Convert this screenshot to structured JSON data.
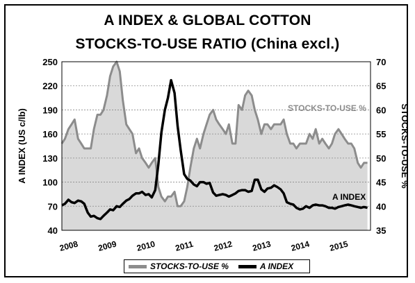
{
  "title_line1": "A INDEX & GLOBAL COTTON",
  "title_line2": "STOCKS-TO-USE RATIO (China excl.)",
  "colors": {
    "stocks_line": "#8c8c8c",
    "stocks_fill": "#d9d9d9",
    "a_index": "#000000",
    "plot_bg": "#ffffff"
  },
  "chart_data": {
    "type": "area",
    "ylabel": "A INDEX (US c/lb)",
    "ylabel_right": "STOCKS-TO-USE %",
    "ylim": [
      40,
      250
    ],
    "yticks": [
      "250",
      "220",
      "190",
      "160",
      "130",
      "100",
      "70",
      "40"
    ],
    "ylim_right": [
      35,
      70
    ],
    "yticks_right": [
      "70",
      "65",
      "60",
      "55",
      "50",
      "45",
      "40",
      "35"
    ],
    "xlim": [
      2008,
      2016
    ],
    "xticks": [
      "2008",
      "2009",
      "2010",
      "2011",
      "2012",
      "2013",
      "2014",
      "2015"
    ],
    "grid": true,
    "legend_position": "bottom",
    "series": [
      {
        "name": "STOCKS-TO-USE %",
        "axis": "right",
        "type": "area",
        "x": [
          2008.0,
          2008.08,
          2008.17,
          2008.25,
          2008.33,
          2008.42,
          2008.5,
          2008.58,
          2008.67,
          2008.75,
          2008.83,
          2008.92,
          2009.0,
          2009.08,
          2009.17,
          2009.25,
          2009.33,
          2009.42,
          2009.5,
          2009.58,
          2009.67,
          2009.75,
          2009.83,
          2009.92,
          2010.0,
          2010.08,
          2010.17,
          2010.25,
          2010.33,
          2010.42,
          2010.5,
          2010.58,
          2010.67,
          2010.75,
          2010.83,
          2010.92,
          2011.0,
          2011.08,
          2011.17,
          2011.25,
          2011.33,
          2011.42,
          2011.5,
          2011.58,
          2011.67,
          2011.75,
          2011.83,
          2011.92,
          2012.0,
          2012.08,
          2012.17,
          2012.25,
          2012.33,
          2012.42,
          2012.5,
          2012.58,
          2012.67,
          2012.75,
          2012.83,
          2012.92,
          2013.0,
          2013.08,
          2013.17,
          2013.25,
          2013.33,
          2013.42,
          2013.5,
          2013.58,
          2013.67,
          2013.75,
          2013.83,
          2013.92,
          2014.0,
          2014.08,
          2014.17,
          2014.25,
          2014.33,
          2014.42,
          2014.5,
          2014.58,
          2014.67,
          2014.75,
          2014.83,
          2014.92,
          2015.0,
          2015.08,
          2015.17,
          2015.25,
          2015.33,
          2015.42,
          2015.5,
          2015.58,
          2015.67,
          2015.75,
          2015.83,
          2015.92
        ],
        "values": [
          53,
          54,
          56,
          57,
          58,
          54,
          53,
          52,
          52,
          52,
          56,
          59,
          59,
          60,
          63,
          67,
          69,
          70,
          68,
          62,
          57,
          56,
          55,
          51,
          52,
          50,
          49,
          48,
          49,
          50,
          44,
          42,
          41,
          42,
          42,
          43,
          40,
          40,
          41,
          44,
          48,
          52,
          54,
          52,
          55,
          57,
          59,
          60,
          58,
          57,
          56,
          55,
          57,
          53,
          53,
          61,
          60,
          63,
          64,
          63,
          60,
          58,
          55,
          57,
          57,
          56,
          57,
          57,
          57,
          58,
          55,
          53,
          53,
          52,
          53,
          53,
          53,
          55,
          54,
          56,
          53,
          54,
          53,
          52,
          53,
          55,
          56,
          55,
          54,
          53,
          53,
          52,
          49,
          48,
          49,
          49
        ]
      },
      {
        "name": "A INDEX",
        "axis": "left",
        "type": "line",
        "x": [
          2008.0,
          2008.08,
          2008.17,
          2008.25,
          2008.33,
          2008.42,
          2008.5,
          2008.58,
          2008.67,
          2008.75,
          2008.83,
          2008.92,
          2009.0,
          2009.08,
          2009.17,
          2009.25,
          2009.33,
          2009.42,
          2009.5,
          2009.58,
          2009.67,
          2009.75,
          2009.83,
          2009.92,
          2010.0,
          2010.08,
          2010.17,
          2010.25,
          2010.33,
          2010.42,
          2010.5,
          2010.58,
          2010.67,
          2010.75,
          2010.83,
          2010.92,
          2011.0,
          2011.08,
          2011.17,
          2011.25,
          2011.33,
          2011.42,
          2011.5,
          2011.58,
          2011.67,
          2011.75,
          2011.83,
          2011.92,
          2012.0,
          2012.08,
          2012.17,
          2012.25,
          2012.33,
          2012.42,
          2012.5,
          2012.58,
          2012.67,
          2012.75,
          2012.83,
          2012.92,
          2013.0,
          2013.08,
          2013.17,
          2013.25,
          2013.33,
          2013.42,
          2013.5,
          2013.58,
          2013.67,
          2013.75,
          2013.83,
          2013.92,
          2014.0,
          2014.08,
          2014.17,
          2014.25,
          2014.33,
          2014.42,
          2014.5,
          2014.58,
          2014.67,
          2014.75,
          2014.83,
          2014.92,
          2015.0,
          2015.08,
          2015.17,
          2015.25,
          2015.33,
          2015.42,
          2015.5,
          2015.58,
          2015.67,
          2015.75,
          2015.83,
          2015.92
        ],
        "values": [
          71,
          73,
          78,
          75,
          74,
          77,
          76,
          73,
          62,
          57,
          58,
          55,
          54,
          58,
          62,
          66,
          65,
          70,
          69,
          73,
          77,
          79,
          83,
          86,
          86,
          88,
          84,
          85,
          81,
          90,
          122,
          162,
          190,
          205,
          227,
          211,
          170,
          140,
          110,
          104,
          102,
          97,
          95,
          100,
          100,
          98,
          99,
          87,
          83,
          84,
          85,
          84,
          82,
          84,
          86,
          89,
          90,
          90,
          88,
          89,
          103,
          103,
          91,
          88,
          92,
          93,
          96,
          94,
          91,
          86,
          75,
          73,
          72,
          68,
          66,
          67,
          70,
          68,
          71,
          72,
          71,
          71,
          70,
          68,
          68,
          67,
          69,
          70,
          71,
          72,
          71,
          70,
          69,
          68,
          69,
          68
        ]
      }
    ],
    "annotations": [
      "STOCKS-TO-USE %",
      "A INDEX"
    ]
  },
  "legend": {
    "stocks": "STOCKS-TO-USE %",
    "aindex": "A INDEX"
  }
}
